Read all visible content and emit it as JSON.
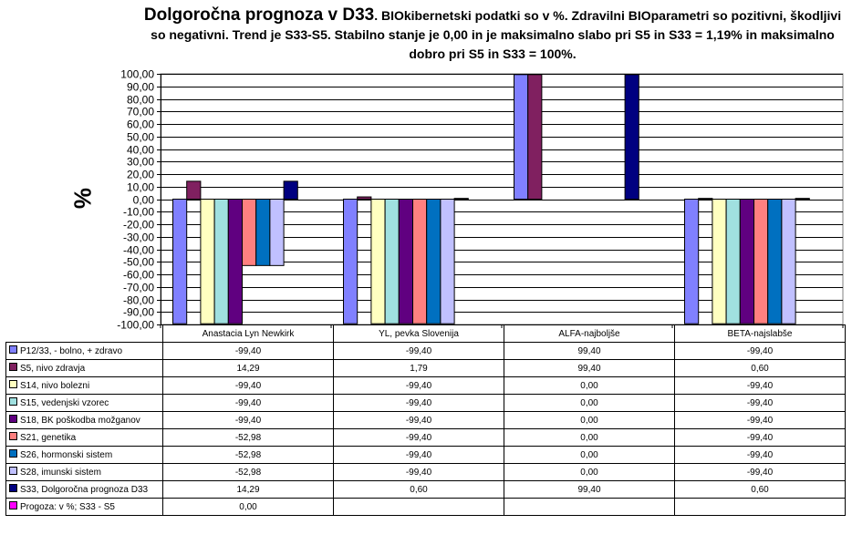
{
  "title": {
    "main": "Dolgoročna prognoza v D33",
    "sub": ". BIOkibernetski podatki so v %. Zdravilni BIOparametri so pozitivni, škodljivi so negativni. Trend je S33-S5. Stabilno stanje je 0,00 in je maksimalno slabo pri S5 in S33 = 1,19% in maksimalno dobro pri S5 in S33 = 100%."
  },
  "chart_data": {
    "type": "bar",
    "ylabel": "%",
    "ylim": [
      -100,
      100
    ],
    "ytick_step": 10,
    "yticks": [
      "100,00",
      "90,00",
      "80,00",
      "70,00",
      "60,00",
      "50,00",
      "40,00",
      "30,00",
      "20,00",
      "10,00",
      "0,00",
      "-10,00",
      "-20,00",
      "-30,00",
      "-40,00",
      "-50,00",
      "-60,00",
      "-70,00",
      "-80,00",
      "-90,00",
      "-100,00"
    ],
    "grid": true,
    "legend": "data-table",
    "categories": [
      "Anastacia Lyn Newkirk",
      "YL, pevka Slovenija",
      "ALFA-najboljše",
      "BETA-najslabše"
    ],
    "series": [
      {
        "name": "P12/33, - bolno, + zdravo",
        "color": "#8080ff",
        "values": [
          -99.4,
          -99.4,
          99.4,
          -99.4
        ],
        "labels": [
          "-99,40",
          "-99,40",
          "99,40",
          "-99,40"
        ]
      },
      {
        "name": "S5, nivo zdravja",
        "color": "#802060",
        "values": [
          14.29,
          1.79,
          99.4,
          0.6
        ],
        "labels": [
          "14,29",
          "1,79",
          "99,40",
          "0,60"
        ]
      },
      {
        "name": "S14, nivo bolezni",
        "color": "#ffffc0",
        "values": [
          -99.4,
          -99.4,
          0.0,
          -99.4
        ],
        "labels": [
          "-99,40",
          "-99,40",
          "0,00",
          "-99,40"
        ]
      },
      {
        "name": "S15, vedenjski vzorec",
        "color": "#a0e0e0",
        "values": [
          -99.4,
          -99.4,
          0.0,
          -99.4
        ],
        "labels": [
          "-99,40",
          "-99,40",
          "0,00",
          "-99,40"
        ]
      },
      {
        "name": "S18, BK poškodba možganov",
        "color": "#600080",
        "values": [
          -99.4,
          -99.4,
          0.0,
          -99.4
        ],
        "labels": [
          "-99,40",
          "-99,40",
          "0,00",
          "-99,40"
        ]
      },
      {
        "name": "S21, genetika",
        "color": "#ff8080",
        "values": [
          -52.98,
          -99.4,
          0.0,
          -99.4
        ],
        "labels": [
          "-52,98",
          "-99,40",
          "0,00",
          "-99,40"
        ]
      },
      {
        "name": "S26, hormonski sistem",
        "color": "#0070c0",
        "values": [
          -52.98,
          -99.4,
          0.0,
          -99.4
        ],
        "labels": [
          "-52,98",
          "-99,40",
          "0,00",
          "-99,40"
        ]
      },
      {
        "name": "S28, imunski sistem",
        "color": "#c0c0ff",
        "values": [
          -52.98,
          -99.4,
          0.0,
          -99.4
        ],
        "labels": [
          "-52,98",
          "-99,40",
          "0,00",
          "-99,40"
        ]
      },
      {
        "name": "S33, Dolgoročna prognoza D33",
        "color": "#000080",
        "values": [
          14.29,
          0.6,
          99.4,
          0.6
        ],
        "labels": [
          "14,29",
          "0,60",
          "99,40",
          "0,60"
        ]
      },
      {
        "name": "Progoza: v %; S33 - S5",
        "color": "#ff00ff",
        "values": [
          0.0,
          null,
          null,
          null
        ],
        "labels": [
          "0,00",
          "",
          "",
          ""
        ]
      }
    ]
  }
}
